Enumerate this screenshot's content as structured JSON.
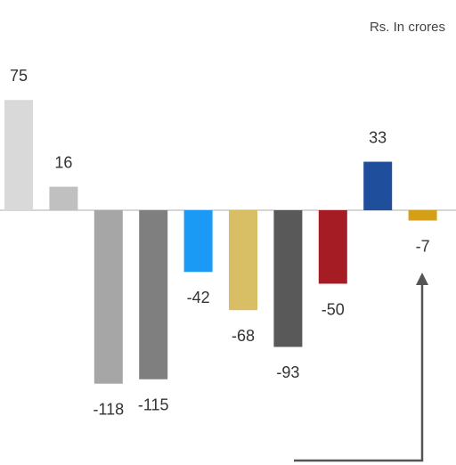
{
  "chart_data": {
    "type": "bar",
    "subtitle": "Rs. In crores",
    "categories": [
      null,
      null,
      null,
      null,
      null,
      null,
      null,
      null,
      null,
      null
    ],
    "values": [
      75,
      16,
      -118,
      -115,
      -42,
      -68,
      -93,
      -50,
      33,
      -7
    ],
    "colors": [
      "#d9d9d9",
      "#c0c0c0",
      "#a6a6a6",
      "#7f7f7f",
      "#1a9af5",
      "#d8bf66",
      "#595959",
      "#a51c24",
      "#1f4e9c",
      "#d4a017"
    ]
  }
}
